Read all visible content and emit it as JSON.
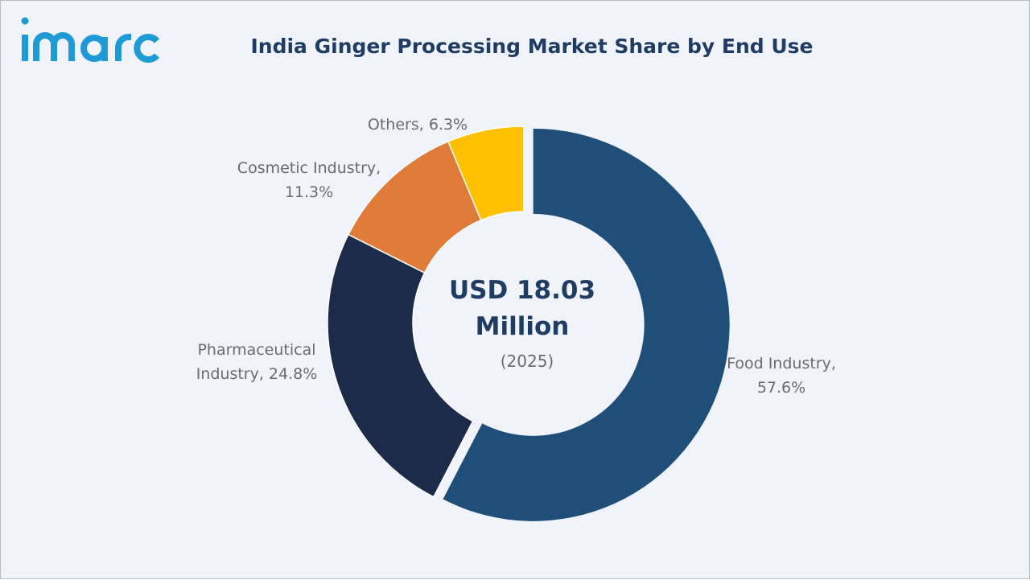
{
  "logo": {
    "text": "imarc",
    "color": "#1e9ad6"
  },
  "chart_data": {
    "type": "pie",
    "title": "India Ginger Processing Market Share by End Use",
    "center_label": {
      "value_line1": "USD 18.03",
      "value_line2": "Million",
      "year": "(2025)"
    },
    "slices": [
      {
        "name": "Food Industry",
        "value": 57.6,
        "label_lines": [
          "Food Industry,",
          "57.6%"
        ],
        "color": "#1f4e79",
        "exploded": true
      },
      {
        "name": "Pharmaceutical Industry",
        "value": 24.8,
        "label_lines": [
          "Pharmaceutical",
          "Industry, 24.8%"
        ],
        "color": "#1c2b4a",
        "exploded": false
      },
      {
        "name": "Cosmetic Industry",
        "value": 11.3,
        "label_lines": [
          "Cosmetic Industry,",
          "11.3%"
        ],
        "color": "#e07b39",
        "exploded": false
      },
      {
        "name": "Others",
        "value": 6.3,
        "label_lines": [
          "Others, 6.3%"
        ],
        "color": "#ffc000",
        "exploded": false
      }
    ]
  }
}
